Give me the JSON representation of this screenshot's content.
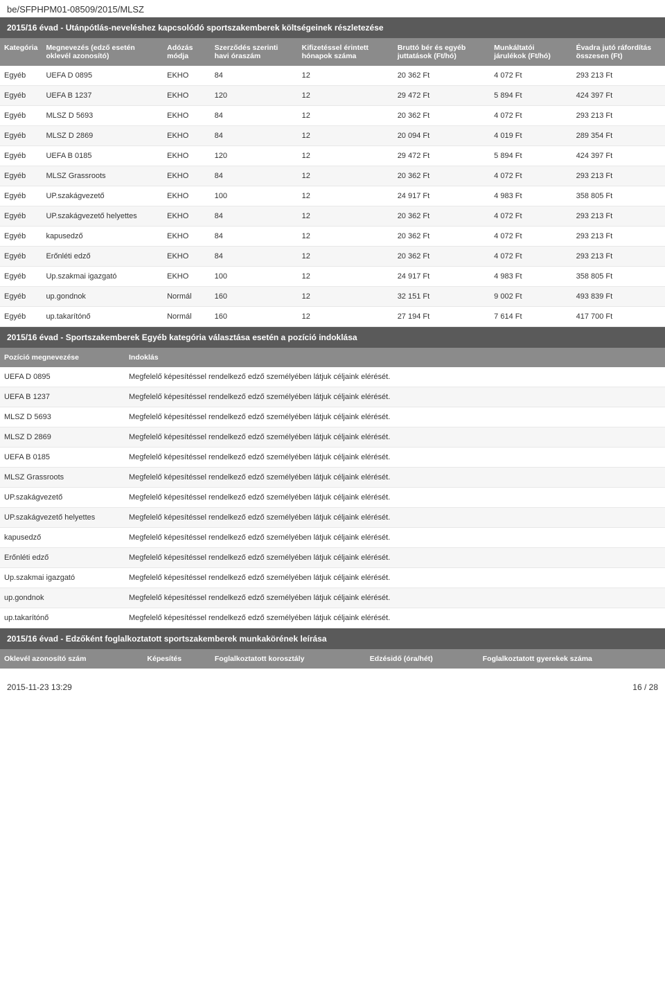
{
  "doc_id": "be/SFPHPM01-08509/2015/MLSZ",
  "section1": {
    "title": "2015/16 évad - Utánpótlás-neveléshez kapcsolódó sportszakemberek költségeinek részletezése",
    "columns": [
      "Kategória",
      "Megnevezés (edző esetén oklevél azonosító)",
      "Adózás módja",
      "Szerződés szerinti havi óraszám",
      "Kifizetéssel érintett hónapok száma",
      "Bruttó bér és egyéb juttatások (Ft/hó)",
      "Munkáltatói járulékok (Ft/hó)",
      "Évadra jutó ráfordítás összesen (Ft)"
    ],
    "rows": [
      [
        "Egyéb",
        "UEFA D 0895",
        "EKHO",
        "84",
        "12",
        "20 362 Ft",
        "4 072 Ft",
        "293 213 Ft"
      ],
      [
        "Egyéb",
        "UEFA B 1237",
        "EKHO",
        "120",
        "12",
        "29 472 Ft",
        "5 894 Ft",
        "424 397 Ft"
      ],
      [
        "Egyéb",
        "MLSZ D 5693",
        "EKHO",
        "84",
        "12",
        "20 362 Ft",
        "4 072 Ft",
        "293 213 Ft"
      ],
      [
        "Egyéb",
        "MLSZ D 2869",
        "EKHO",
        "84",
        "12",
        "20 094 Ft",
        "4 019 Ft",
        "289 354 Ft"
      ],
      [
        "Egyéb",
        "UEFA B 0185",
        "EKHO",
        "120",
        "12",
        "29 472 Ft",
        "5 894 Ft",
        "424 397 Ft"
      ],
      [
        "Egyéb",
        "MLSZ Grassroots",
        "EKHO",
        "84",
        "12",
        "20 362 Ft",
        "4 072 Ft",
        "293 213 Ft"
      ],
      [
        "Egyéb",
        "UP.szakágvezető",
        "EKHO",
        "100",
        "12",
        "24 917 Ft",
        "4 983 Ft",
        "358 805 Ft"
      ],
      [
        "Egyéb",
        "UP.szakágvezető helyettes",
        "EKHO",
        "84",
        "12",
        "20 362 Ft",
        "4 072 Ft",
        "293 213 Ft"
      ],
      [
        "Egyéb",
        "kapusedző",
        "EKHO",
        "84",
        "12",
        "20 362 Ft",
        "4 072 Ft",
        "293 213 Ft"
      ],
      [
        "Egyéb",
        "Erőnléti edző",
        "EKHO",
        "84",
        "12",
        "20 362 Ft",
        "4 072 Ft",
        "293 213 Ft"
      ],
      [
        "Egyéb",
        "Up.szakmai igazgató",
        "EKHO",
        "100",
        "12",
        "24 917 Ft",
        "4 983 Ft",
        "358 805 Ft"
      ],
      [
        "Egyéb",
        "up.gondnok",
        "Normál",
        "160",
        "12",
        "32 151 Ft",
        "9 002 Ft",
        "493 839 Ft"
      ],
      [
        "Egyéb",
        "up.takarítónő",
        "Normál",
        "160",
        "12",
        "27 194 Ft",
        "7 614 Ft",
        "417 700 Ft"
      ]
    ]
  },
  "section2": {
    "title": "2015/16 évad - Sportszakemberek Egyéb kategória választása esetén a pozíció indoklása",
    "columns": [
      "Pozíció megnevezése",
      "Indoklás"
    ],
    "justification_text": "Megfelelő képesítéssel rendelkező edző személyében látjuk céljaink elérését.",
    "positions": [
      "UEFA D 0895",
      "UEFA B 1237",
      "MLSZ D 5693",
      "MLSZ D 2869",
      "UEFA B 0185",
      "MLSZ Grassroots",
      "UP.szakágvezető",
      "UP.szakágvezető helyettes",
      "kapusedző",
      "Erőnléti edző",
      "Up.szakmai igazgató",
      "up.gondnok",
      "up.takarítónő"
    ]
  },
  "section3": {
    "title": "2015/16 évad - Edzőként foglalkoztatott sportszakemberek munkakörének leírása",
    "columns": [
      "Oklevél azonosító szám",
      "Képesítés",
      "Foglalkoztatott korosztály",
      "Edzésidő (óra/hét)",
      "Foglalkoztatott gyerekek száma"
    ]
  },
  "footer": {
    "date": "2015-11-23 13:29",
    "page": "16 / 28"
  },
  "style": {
    "header_bg": "#5a5a5a",
    "thead_bg": "#8b8b8b",
    "row_alt_bg": "#f6f6f6",
    "border_color": "#e8e8e8",
    "text_color": "#333333"
  }
}
